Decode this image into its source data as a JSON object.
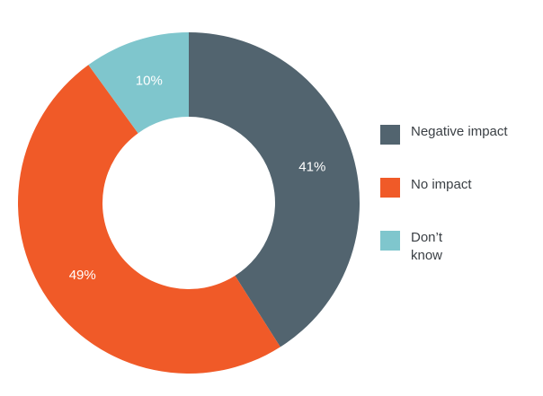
{
  "chart_data": {
    "type": "pie",
    "style": "donut",
    "title": "",
    "categories": [
      "Negative impact",
      "No impact",
      "Don’t know"
    ],
    "values": [
      41,
      49,
      10
    ],
    "value_labels": [
      "41%",
      "49%",
      "10%"
    ],
    "colors": [
      "#52646f",
      "#f05a28",
      "#7fc6cd"
    ],
    "legend": {
      "placement": "right",
      "items": [
        {
          "label": "Negative impact",
          "color": "#52646f"
        },
        {
          "label": "No impact",
          "color": "#f05a28"
        },
        {
          "label_lines": [
            "Don’t",
            "know"
          ],
          "color": "#7fc6cd"
        }
      ]
    }
  }
}
